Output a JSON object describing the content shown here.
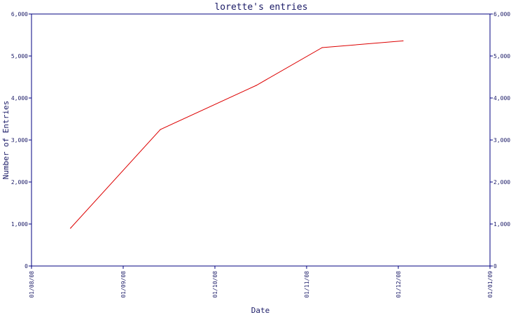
{
  "chart_data": {
    "type": "line",
    "title": "lorette's entries",
    "xlabel": "Date",
    "ylabel": "Number of Entries",
    "x_ticks": [
      "01/08/08",
      "01/09/08",
      "01/10/08",
      "01/11/08",
      "01/12/08",
      "01/01/09"
    ],
    "y_ticks": [
      "0",
      "1,000",
      "2,000",
      "3,000",
      "4,000",
      "5,000",
      "6,000"
    ],
    "ylim": [
      0,
      6000
    ],
    "xlim": [
      "2008-08-01",
      "2009-01-01"
    ],
    "grid": false,
    "right_axis": true,
    "line_color": "#dd0000",
    "axis_color": "#000080",
    "series": [
      {
        "x": [
          "2008-08-14",
          "2008-09-13",
          "2008-10-15",
          "2008-11-06",
          "2008-12-03"
        ],
        "values": [
          900,
          3250,
          4300,
          5200,
          5360
        ]
      }
    ]
  }
}
